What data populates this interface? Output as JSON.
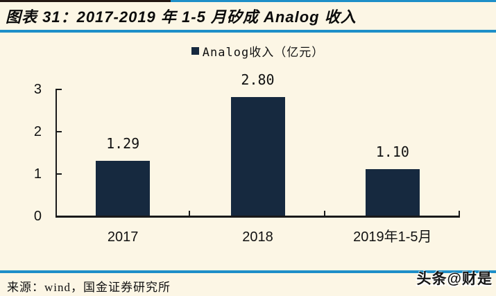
{
  "window": {
    "background": "#fcf6e5",
    "accent_rule_color": "#1e8fc8",
    "top_edge_dark_color": "#241712"
  },
  "header": {
    "title": "图表 31：2017-2019 年 1-5 月矽成 Analog 收入"
  },
  "chart_data": {
    "type": "bar",
    "title": "",
    "legend": [
      {
        "label": "Analog收入（亿元）",
        "color": "#16293f"
      }
    ],
    "legend_position": "top-center",
    "categories": [
      "2017",
      "2018",
      "2019年1-5月"
    ],
    "values": [
      1.29,
      2.8,
      1.1
    ],
    "value_labels": [
      "1.29",
      "2.80",
      "1.10"
    ],
    "xlabel": "",
    "ylabel": "",
    "ylim": [
      0,
      3
    ],
    "yticks": [
      0,
      1,
      2,
      3
    ],
    "bar_color": "#16293f",
    "axis_color": "#1a1a1a",
    "grid": false
  },
  "footer": {
    "source": "来源：wind，国金证券研究所",
    "watermark": "头条@财是"
  }
}
